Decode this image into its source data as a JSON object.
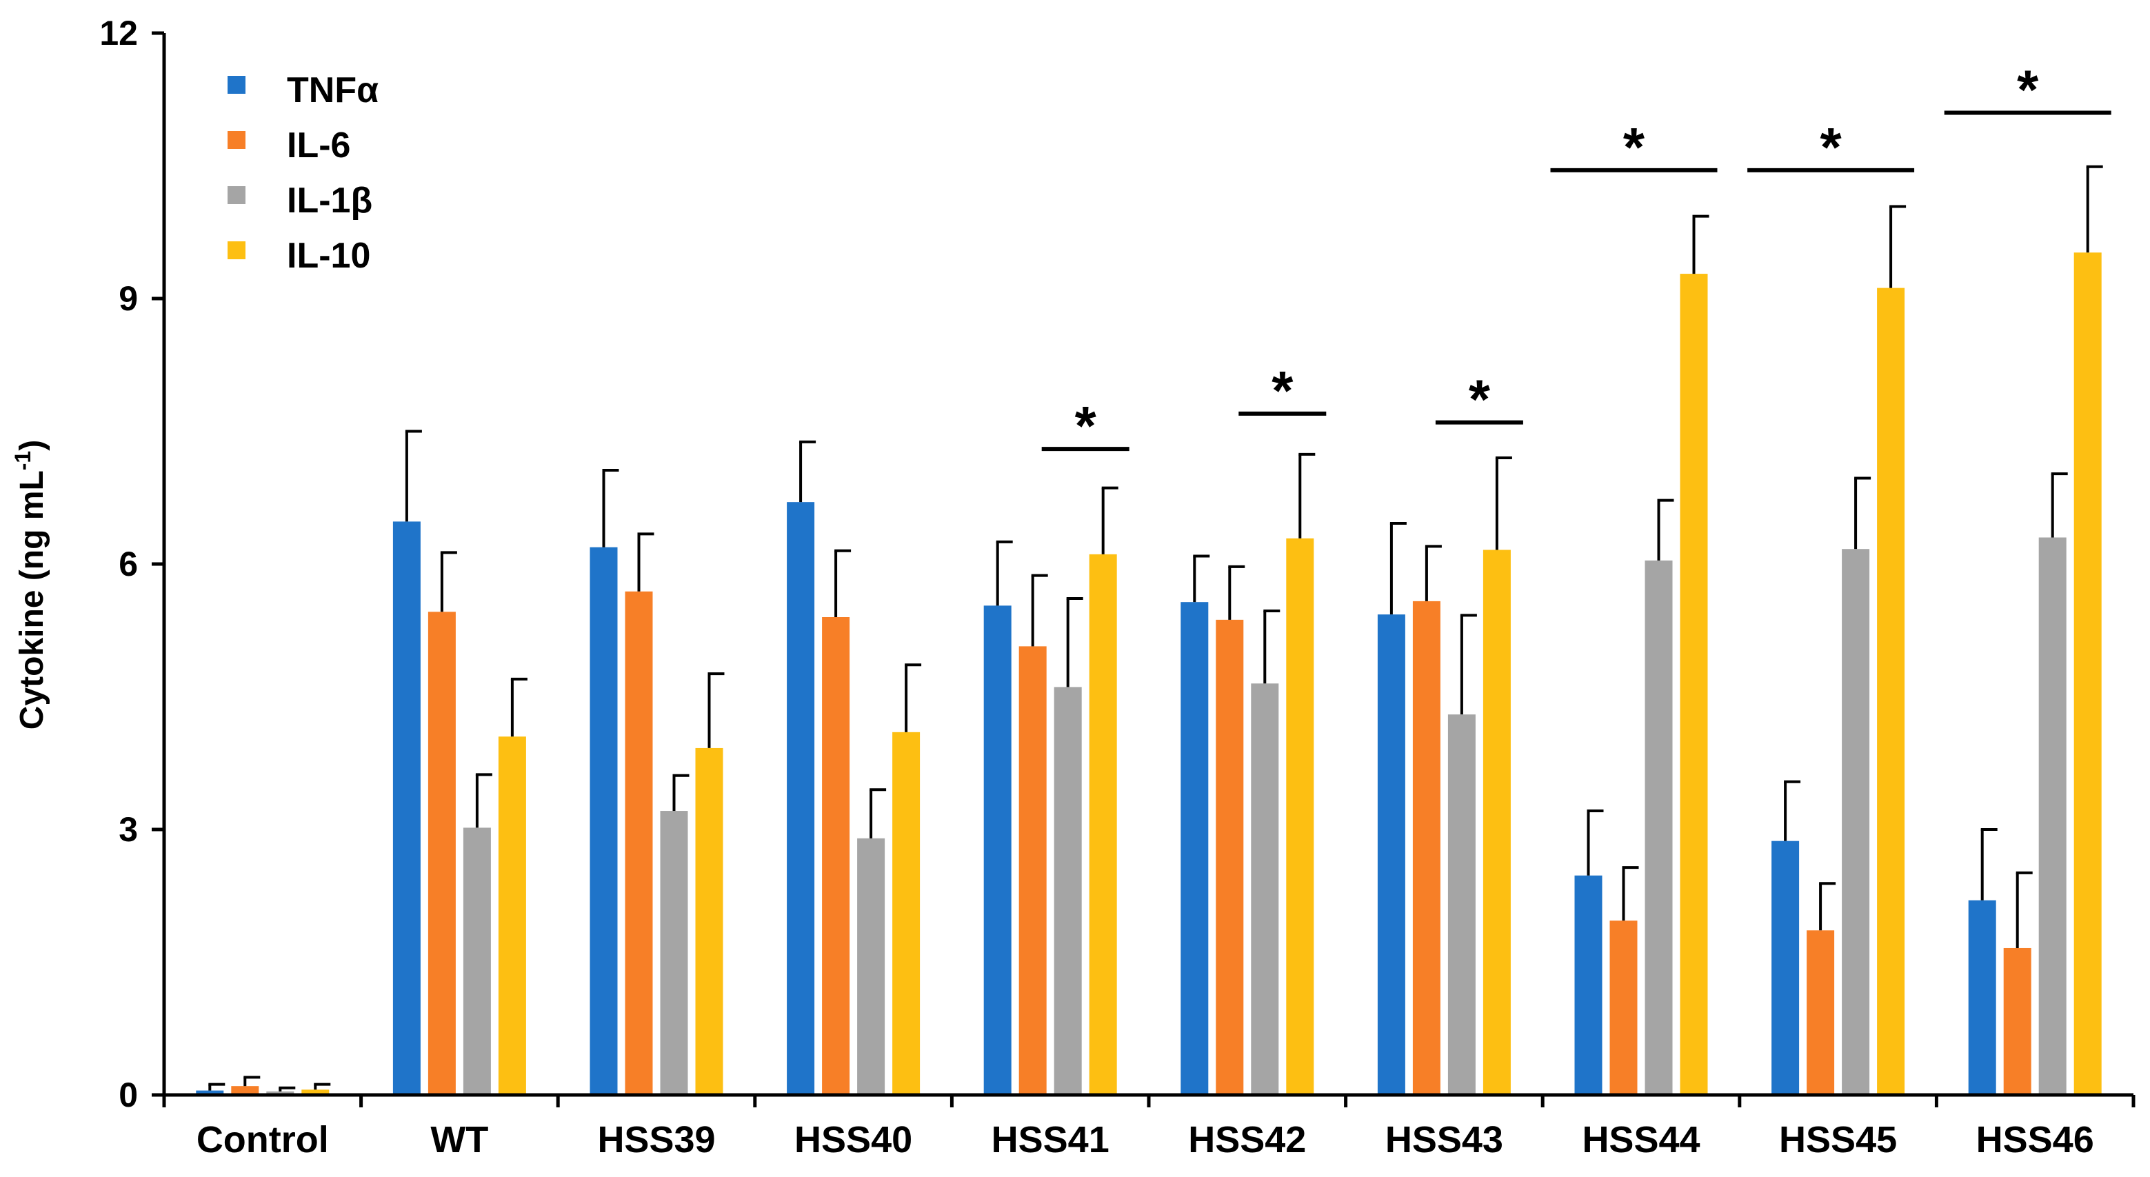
{
  "chart_data": {
    "type": "bar",
    "title": "",
    "xlabel": "",
    "ylabel": "Cytokine  (ng mL",
    "ylabel_superscript": "-1",
    "ylabel_close": ")",
    "ylim": [
      0,
      12
    ],
    "yticks": [
      0,
      3,
      6,
      9,
      12
    ],
    "legend_position": "top-left",
    "categories": [
      "Control",
      "WT",
      "HSS39",
      "HSS40",
      "HSS41",
      "HSS42",
      "HSS43",
      "HSS44",
      "HSS45",
      "HSS46"
    ],
    "series": [
      {
        "name": "TNFα",
        "color": "#1f74c9",
        "values": [
          0.05,
          6.48,
          6.19,
          6.7,
          5.53,
          5.57,
          5.43,
          2.48,
          2.87,
          2.2
        ],
        "errors": [
          0.07,
          1.02,
          0.87,
          0.68,
          0.72,
          0.52,
          1.03,
          0.73,
          0.67,
          0.8
        ]
      },
      {
        "name": "IL-6",
        "color": "#f77f27",
        "values": [
          0.1,
          5.46,
          5.69,
          5.4,
          5.07,
          5.37,
          5.58,
          1.97,
          1.86,
          1.66
        ],
        "errors": [
          0.1,
          0.67,
          0.65,
          0.75,
          0.8,
          0.6,
          0.62,
          0.6,
          0.53,
          0.85
        ]
      },
      {
        "name": "IL-1β",
        "color": "#a5a5a5",
        "values": [
          0.04,
          3.02,
          3.21,
          2.9,
          4.61,
          4.65,
          4.3,
          6.04,
          6.17,
          6.3
        ],
        "errors": [
          0.04,
          0.6,
          0.4,
          0.55,
          1.0,
          0.82,
          1.12,
          0.68,
          0.8,
          0.72
        ]
      },
      {
        "name": "IL-10",
        "color": "#fdbf12",
        "values": [
          0.06,
          4.05,
          3.92,
          4.1,
          6.11,
          6.29,
          6.16,
          9.28,
          9.12,
          9.52
        ],
        "errors": [
          0.06,
          0.65,
          0.84,
          0.76,
          0.75,
          0.95,
          1.04,
          0.65,
          0.92,
          0.97
        ]
      }
    ],
    "significance": [
      {
        "category": "HSS41",
        "label": "*",
        "bar_level": 7.3
      },
      {
        "category": "HSS42",
        "label": "*",
        "bar_level": 7.7
      },
      {
        "category": "HSS43",
        "label": "*",
        "bar_level": 7.6
      },
      {
        "category": "HSS44",
        "label": "*",
        "bar_level": 10.45
      },
      {
        "category": "HSS45",
        "label": "*",
        "bar_level": 10.45
      },
      {
        "category": "HSS46",
        "label": "*",
        "bar_level": 11.1
      }
    ]
  }
}
